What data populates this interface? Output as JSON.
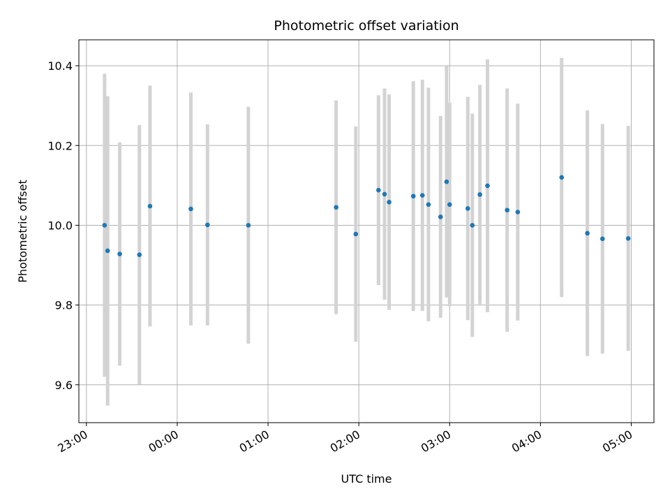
{
  "chart_data": {
    "type": "scatter",
    "title": "Photometric offset variation",
    "xlabel": "UTC time",
    "ylabel": "Photometric offset",
    "x_unit": "UTC time (HH:MM)",
    "x_ticks": [
      "23:00",
      "00:00",
      "01:00",
      "02:00",
      "03:00",
      "04:00",
      "05:00"
    ],
    "y_ticks": [
      "9.6",
      "9.8",
      "10.0",
      "10.2",
      "10.4"
    ],
    "xlim": [
      "22:55",
      "05:15"
    ],
    "ylim": [
      9.505,
      10.465
    ],
    "grid": true,
    "colors": {
      "point": "#1f77b4",
      "errorbar": "#d3d3d3",
      "grid": "#b0b0b0"
    },
    "points": [
      {
        "x": "23:12",
        "y": 10.0,
        "err": 0.38
      },
      {
        "x": "23:14",
        "y": 9.936,
        "err": 0.388
      },
      {
        "x": "23:22",
        "y": 9.928,
        "err": 0.28
      },
      {
        "x": "23:35",
        "y": 9.926,
        "err": 0.325
      },
      {
        "x": "23:42",
        "y": 10.048,
        "err": 0.302
      },
      {
        "x": "00:09",
        "y": 10.041,
        "err": 0.292
      },
      {
        "x": "00:20",
        "y": 10.001,
        "err": 0.252
      },
      {
        "x": "00:47",
        "y": 10.0,
        "err": 0.297
      },
      {
        "x": "01:45",
        "y": 10.045,
        "err": 0.268
      },
      {
        "x": "01:58",
        "y": 9.978,
        "err": 0.27
      },
      {
        "x": "02:13",
        "y": 10.088,
        "err": 0.238
      },
      {
        "x": "02:17",
        "y": 10.078,
        "err": 0.265
      },
      {
        "x": "02:20",
        "y": 10.058,
        "err": 0.27
      },
      {
        "x": "02:36",
        "y": 10.073,
        "err": 0.288
      },
      {
        "x": "02:42",
        "y": 10.075,
        "err": 0.29
      },
      {
        "x": "02:46",
        "y": 10.052,
        "err": 0.293
      },
      {
        "x": "02:54",
        "y": 10.021,
        "err": 0.253
      },
      {
        "x": "02:58",
        "y": 10.109,
        "err": 0.29
      },
      {
        "x": "03:00",
        "y": 10.052,
        "err": 0.255
      },
      {
        "x": "03:12",
        "y": 10.042,
        "err": 0.28
      },
      {
        "x": "03:15",
        "y": 10.0,
        "err": 0.28
      },
      {
        "x": "03:20",
        "y": 10.077,
        "err": 0.275
      },
      {
        "x": "03:25",
        "y": 10.099,
        "err": 0.317
      },
      {
        "x": "03:38",
        "y": 10.038,
        "err": 0.305
      },
      {
        "x": "03:45",
        "y": 10.033,
        "err": 0.272
      },
      {
        "x": "04:14",
        "y": 10.12,
        "err": 0.3
      },
      {
        "x": "04:31",
        "y": 9.98,
        "err": 0.308
      },
      {
        "x": "04:41",
        "y": 9.966,
        "err": 0.288
      },
      {
        "x": "04:58",
        "y": 9.967,
        "err": 0.282
      }
    ]
  }
}
